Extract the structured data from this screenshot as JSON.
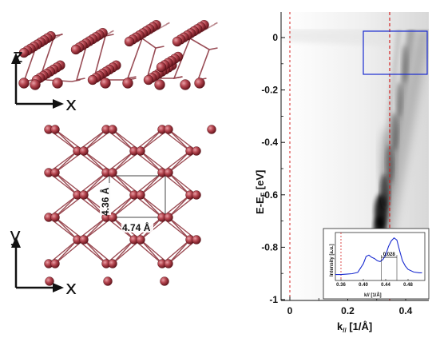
{
  "side_view": {
    "axis_z": "z",
    "axis_x": "x"
  },
  "top_view": {
    "axis_y": "y",
    "axis_x": "x",
    "dimension_vertical": "4.36 Å",
    "dimension_horizontal": "4.74 Å"
  },
  "arpes": {
    "ylabel": "E-E",
    "ylabel_sub": "F",
    "ylabel_unit": " [eV]",
    "xlabel": "k",
    "xlabel_sub": "//",
    "xlabel_unit": " [1/Å]",
    "y_ticks": [
      "0",
      "-0.2",
      "-0.4",
      "-0.6",
      "-0.8",
      "-1"
    ],
    "x_ticks": [
      "0",
      "0.2",
      "0.4"
    ]
  },
  "chart_data": {
    "type": "line",
    "title": "",
    "xlabel": "k// [1/Å]",
    "ylabel": "Intensity [a.u.]",
    "x_ticks": [
      "0.36",
      "0.40",
      "0.44",
      "0.48"
    ],
    "xlim": [
      0.35,
      0.51
    ],
    "ylim": [
      0,
      1
    ],
    "x": [
      0.35,
      0.36,
      0.37,
      0.38,
      0.39,
      0.4,
      0.405,
      0.41,
      0.415,
      0.42,
      0.425,
      0.43,
      0.435,
      0.44,
      0.445,
      0.45,
      0.455,
      0.46,
      0.465,
      0.47,
      0.475,
      0.48,
      0.49,
      0.5,
      0.505
    ],
    "y": [
      0.1,
      0.1,
      0.11,
      0.12,
      0.15,
      0.35,
      0.52,
      0.55,
      0.5,
      0.47,
      0.42,
      0.4,
      0.45,
      0.55,
      0.75,
      0.88,
      0.95,
      0.9,
      0.65,
      0.42,
      0.3,
      0.22,
      0.16,
      0.14,
      0.14
    ],
    "annotation": "0.028",
    "reference_line_x": 0.36,
    "fwhm_left_x": 0.432,
    "fwhm_right_x": 0.46
  }
}
